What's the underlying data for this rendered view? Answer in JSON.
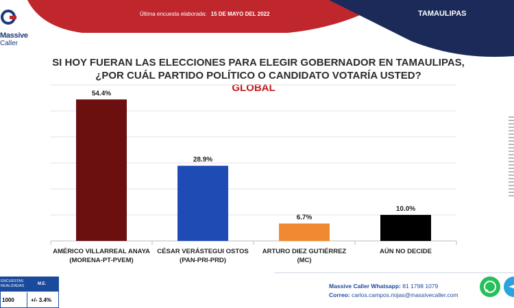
{
  "header": {
    "date_label": "Última encuesta elaborada:",
    "date_value": "15 DE MAYO DEL 2022",
    "region": "TAMAULIPAS"
  },
  "logo": {
    "line1": "Massive",
    "line2": "Caller"
  },
  "question": {
    "line1": "SI HOY FUERAN LAS ELECCIONES PARA ELEGIR GOBERNADOR EN TAMAULIPAS,",
    "line2": "¿POR CUÁL PARTIDO POLÍTICO O CANDIDATO VOTARÍA USTED?",
    "subtitle": "GLOBAL"
  },
  "chart_data": {
    "type": "bar",
    "categories": [
      [
        "AMÉRICO VILLARREAL ANAYA",
        "(MORENA-PT-PVEM)"
      ],
      [
        "CÉSAR VERÁSTEGUI OSTOS",
        "(PAN-PRI-PRD)"
      ],
      [
        "ARTURO DIEZ GUTIÉRREZ",
        "(MC)"
      ],
      [
        "AÚN NO DECIDE"
      ]
    ],
    "values": [
      54.4,
      28.9,
      6.7,
      10.0
    ],
    "value_labels": [
      "54.4%",
      "28.9%",
      "6.7%",
      "10.0%"
    ],
    "colors": [
      "#6b0f0f",
      "#1f4bb5",
      "#ef8a32",
      "#000000"
    ],
    "ylim": [
      0,
      60
    ],
    "grid": true,
    "title": "",
    "xlabel": "",
    "ylabel": ""
  },
  "stats": {
    "col1_header": "ENCUESTAS REALIZADAS",
    "col2_header": "M.E.",
    "col1_value": "1000",
    "col2_value": "+/- 3.4%"
  },
  "contact": {
    "whatsapp_label": "Massive Caller Whatsapp:",
    "whatsapp_number": "81 1798 1079",
    "email_label": "Correo:",
    "email_value": "carlos.campos.riojas@massivecaller.com"
  },
  "icons": {
    "whatsapp": "whatsapp-icon",
    "telegram": "telegram-icon"
  }
}
